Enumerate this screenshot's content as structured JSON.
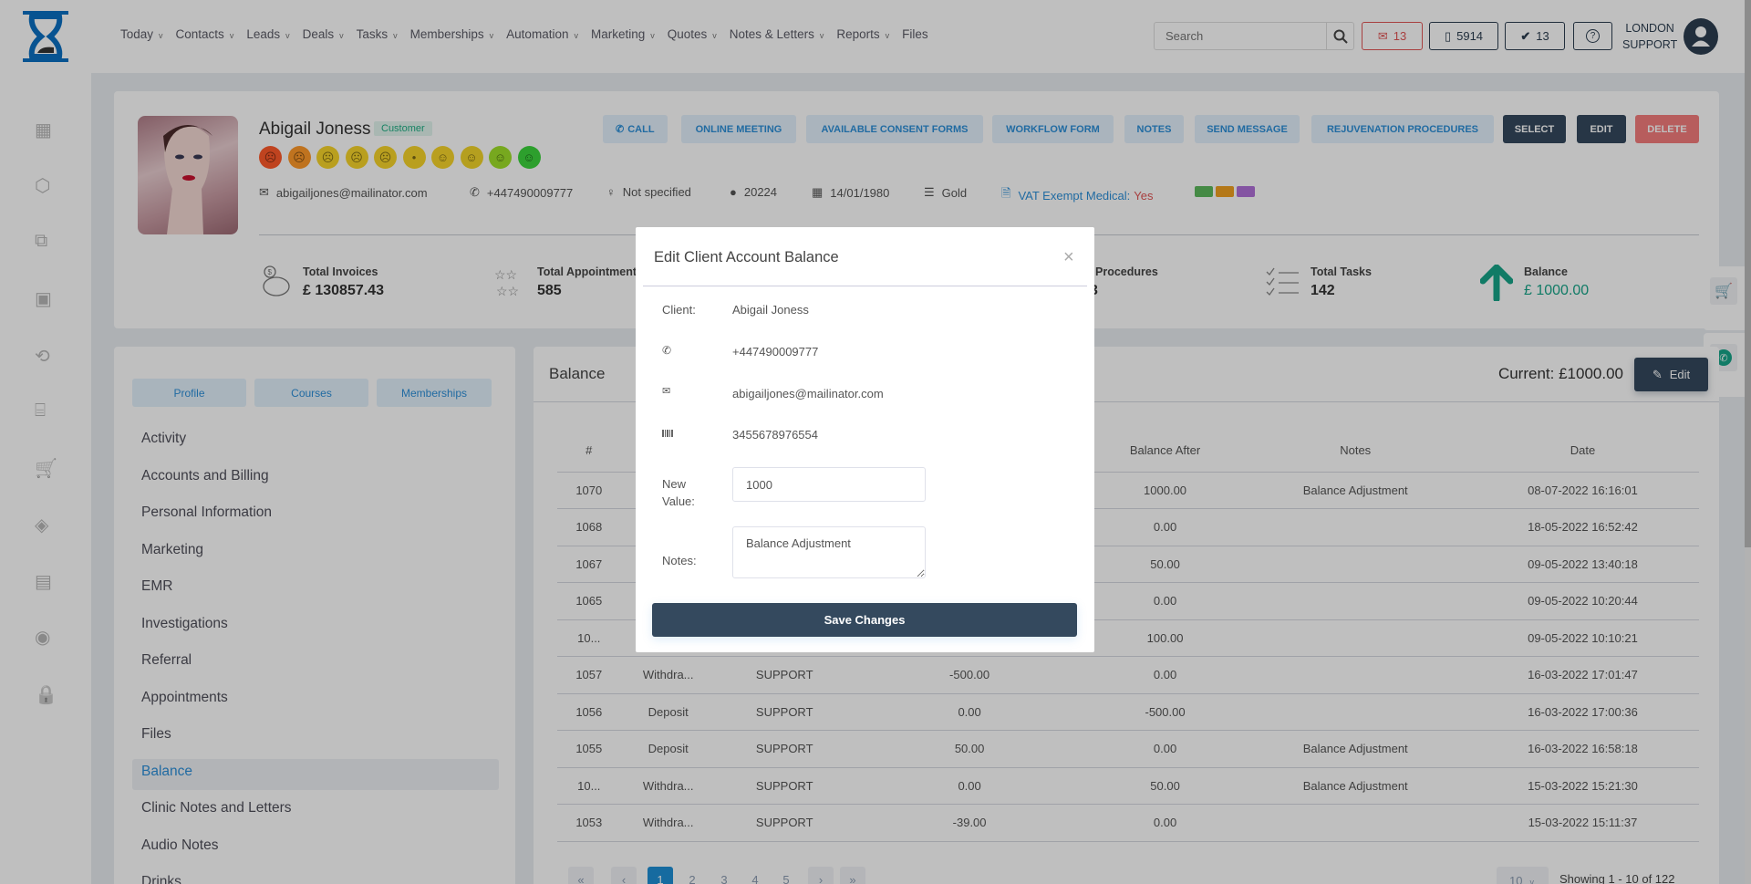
{
  "nav": {
    "items": [
      "Today",
      "Contacts",
      "Leads",
      "Deals",
      "Tasks",
      "Memberships",
      "Automation",
      "Marketing",
      "Quotes",
      "Notes & Letters",
      "Reports",
      "Files"
    ],
    "dropdowns": [
      true,
      true,
      true,
      true,
      true,
      true,
      true,
      true,
      true,
      true,
      true,
      false
    ]
  },
  "header": {
    "search_placeholder": "Search",
    "mail_count": "13",
    "phone_count": "5914",
    "tasks_count": "13",
    "user_line1": "LONDON",
    "user_line2": "SUPPORT"
  },
  "sidebar_icons": [
    "calendar-icon",
    "box-icon",
    "copy-icon",
    "calendar-check-icon",
    "history-icon",
    "gift-icon",
    "cart-icon",
    "tag-icon",
    "report-icon",
    "user-circle-icon",
    "lock-icon"
  ],
  "profile": {
    "name": "Abigail Joness",
    "badge": "Customer",
    "email": "abigailjones@mailinator.com",
    "phone": "+447490009777",
    "gender": "Not specified",
    "id": "20224",
    "dob": "14/01/1980",
    "tier": "Gold",
    "vat_label": "VAT Exempt Medical:",
    "vat_value": "Yes",
    "tag_colors": [
      "#5cb85c",
      "#f0a020",
      "#b070d8"
    ],
    "faces": [
      "#ff5a2a",
      "#ff9a2a",
      "#f7d42a",
      "#f7d42a",
      "#f7d42a",
      "#f7d42a",
      "#f7d42a",
      "#f2d42a",
      "#9fe02a",
      "#3cd43c"
    ],
    "actions": {
      "call": "CALL",
      "online_meeting": "ONLINE MEETING",
      "consent": "AVAILABLE CONSENT FORMS",
      "workflow": "WORKFLOW FORM",
      "notes": "NOTES",
      "send_message": "SEND MESSAGE",
      "rejuvenation": "REJUVENATION PROCEDURES",
      "select": "SELECT",
      "edit": "EDIT",
      "delete": "DELETE"
    }
  },
  "stats": {
    "invoices_label": "Total Invoices",
    "invoices_value": "£ 130857.43",
    "appointments_label": "Total Appointments",
    "appointments_value": "585",
    "procedures_label": "Procedures",
    "procedures_value": "3",
    "tasks_label": "Total Tasks",
    "tasks_value": "142",
    "balance_label": "Balance",
    "balance_value": "£ 1000.00"
  },
  "left_panel": {
    "tabs": [
      "Profile",
      "Courses",
      "Memberships"
    ],
    "menu": [
      "Activity",
      "Accounts and Billing",
      "Personal Information",
      "Marketing",
      "EMR",
      "Investigations",
      "Referral",
      "Appointments",
      "Files",
      "Balance",
      "Clinic Notes and Letters",
      "Audio Notes",
      "Drinks"
    ],
    "active": "Balance"
  },
  "balance_panel": {
    "title": "Balance",
    "current": "Current: £1000.00",
    "edit_label": "Edit",
    "columns": [
      "#",
      "",
      "",
      "",
      "Balance After",
      "Notes",
      "Date"
    ],
    "rows": [
      [
        "1070",
        "",
        "",
        "",
        "1000.00",
        "Balance Adjustment",
        "08-07-2022 16:16:01"
      ],
      [
        "1068",
        "",
        "",
        "",
        "0.00",
        "",
        "18-05-2022 16:52:42"
      ],
      [
        "1067",
        "",
        "",
        "",
        "50.00",
        "",
        "09-05-2022 13:40:18"
      ],
      [
        "1065",
        "",
        "",
        "",
        "0.00",
        "",
        "09-05-2022 10:20:44"
      ],
      [
        "10...",
        "",
        "",
        "",
        "100.00",
        "",
        "09-05-2022 10:10:21"
      ],
      [
        "1057",
        "Withdra...",
        "SUPPORT",
        "-500.00",
        "0.00",
        "",
        "16-03-2022 17:01:47"
      ],
      [
        "1056",
        "Deposit",
        "SUPPORT",
        "0.00",
        "-500.00",
        "",
        "16-03-2022 17:00:36"
      ],
      [
        "1055",
        "Deposit",
        "SUPPORT",
        "50.00",
        "0.00",
        "Balance Adjustment",
        "16-03-2022 16:58:18"
      ],
      [
        "10...",
        "Withdra...",
        "SUPPORT",
        "0.00",
        "50.00",
        "Balance Adjustment",
        "15-03-2022 15:21:30"
      ],
      [
        "1053",
        "Withdra...",
        "SUPPORT",
        "-39.00",
        "0.00",
        "",
        "15-03-2022 15:11:37"
      ]
    ],
    "pagination": {
      "first": "«",
      "prev": "‹",
      "pages": [
        "1",
        "2",
        "3",
        "4",
        "5"
      ],
      "current": "1",
      "next": "›",
      "last": "»",
      "per_page": "10",
      "showing": "Showing 1 - 10 of 122"
    }
  },
  "modal": {
    "title": "Edit Client Account Balance",
    "client_label": "Client:",
    "client_value": "Abigail Joness",
    "phone": "+447490009777",
    "email": "abigailjones@mailinator.com",
    "barcode": "3455678976554",
    "new_value_label_1": "New",
    "new_value_label_2": "Value:",
    "new_value": "1000",
    "notes_label": "Notes:",
    "notes_value": "Balance Adjustment",
    "save": "Save Changes"
  },
  "colors": {
    "accent": "#2d8fd8",
    "dark": "#34495e",
    "danger": "#f47c7c",
    "balance": "#17a589"
  }
}
